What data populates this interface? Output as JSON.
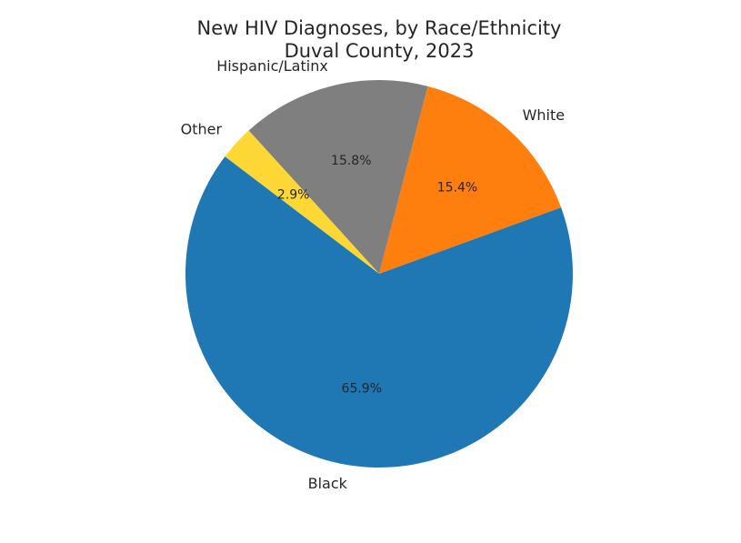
{
  "chart_data": {
    "type": "pie",
    "title": "New HIV Diagnoses, by Race/Ethnicity",
    "subtitle": "Duval County, 2023",
    "slices": [
      {
        "label": "White",
        "value": 15.4,
        "pct_label": "15.4%",
        "color": "#ff7f0e"
      },
      {
        "label": "Hispanic/Latinx",
        "value": 15.8,
        "pct_label": "15.8%",
        "color": "#7f7f7f"
      },
      {
        "label": "Other",
        "value": 2.9,
        "pct_label": "2.9%",
        "color": "#fdd835"
      },
      {
        "label": "Black",
        "value": 65.9,
        "pct_label": "65.9%",
        "color": "#1f77b4"
      }
    ],
    "start_angle_deg": 20,
    "direction": "counterclockwise",
    "legend": "none"
  }
}
